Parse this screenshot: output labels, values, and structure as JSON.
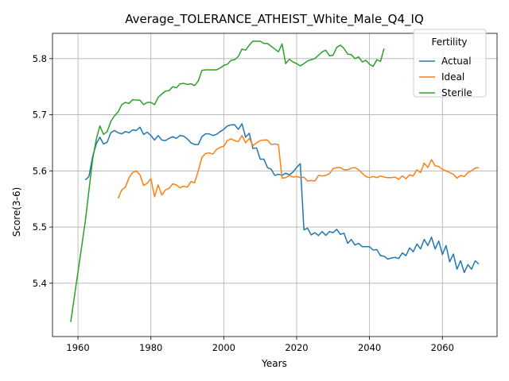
{
  "chart_data": {
    "type": "line",
    "title": "Average_TOLERANCE_ATHEIST_White_Male_Q4_IQ",
    "xlabel": "Years",
    "ylabel": "Score(3-6)",
    "xlim": [
      1953,
      2075
    ],
    "ylim": [
      5.305,
      5.845
    ],
    "xticks": [
      1960,
      1980,
      2000,
      2020,
      2040,
      2060
    ],
    "yticks": [
      5.4,
      5.5,
      5.6,
      5.7,
      5.8
    ],
    "grid": true,
    "legend": {
      "title": "Fertility",
      "placement": "top-right"
    },
    "series": [
      {
        "name": "Actual",
        "color": "#1f77b4",
        "points": [
          [
            1962,
            5.584
          ],
          [
            1963,
            5.59
          ],
          [
            1964,
            5.625
          ],
          [
            1965,
            5.648
          ],
          [
            1966,
            5.66
          ],
          [
            1967,
            5.648
          ],
          [
            1968,
            5.651
          ],
          [
            1969,
            5.668
          ],
          [
            1970,
            5.672
          ],
          [
            1971,
            5.668
          ],
          [
            1972,
            5.666
          ],
          [
            1973,
            5.67
          ],
          [
            1974,
            5.668
          ],
          [
            1975,
            5.673
          ],
          [
            1976,
            5.672
          ],
          [
            1977,
            5.678
          ],
          [
            1978,
            5.665
          ],
          [
            1979,
            5.669
          ],
          [
            1980,
            5.663
          ],
          [
            1981,
            5.655
          ],
          [
            1982,
            5.663
          ],
          [
            1983,
            5.655
          ],
          [
            1984,
            5.654
          ],
          [
            1985,
            5.658
          ],
          [
            1986,
            5.661
          ],
          [
            1987,
            5.658
          ],
          [
            1988,
            5.663
          ],
          [
            1989,
            5.662
          ],
          [
            1990,
            5.657
          ],
          [
            1991,
            5.65
          ],
          [
            1992,
            5.647
          ],
          [
            1993,
            5.647
          ],
          [
            1994,
            5.661
          ],
          [
            1995,
            5.666
          ],
          [
            1996,
            5.666
          ],
          [
            1997,
            5.663
          ],
          [
            1998,
            5.665
          ],
          [
            1999,
            5.67
          ],
          [
            2000,
            5.674
          ],
          [
            2001,
            5.68
          ],
          [
            2002,
            5.682
          ],
          [
            2003,
            5.682
          ],
          [
            2004,
            5.674
          ],
          [
            2005,
            5.684
          ],
          [
            2006,
            5.66
          ],
          [
            2007,
            5.667
          ],
          [
            2008,
            5.64
          ],
          [
            2009,
            5.641
          ],
          [
            2010,
            5.621
          ],
          [
            2011,
            5.621
          ],
          [
            2012,
            5.606
          ],
          [
            2013,
            5.603
          ],
          [
            2014,
            5.592
          ],
          [
            2015,
            5.594
          ],
          [
            2016,
            5.592
          ],
          [
            2017,
            5.596
          ],
          [
            2018,
            5.593
          ],
          [
            2019,
            5.598
          ],
          [
            2020,
            5.606
          ],
          [
            2021,
            5.613
          ],
          [
            2022,
            5.495
          ],
          [
            2023,
            5.498
          ],
          [
            2024,
            5.486
          ],
          [
            2025,
            5.49
          ],
          [
            2026,
            5.485
          ],
          [
            2027,
            5.492
          ],
          [
            2028,
            5.485
          ],
          [
            2029,
            5.492
          ],
          [
            2030,
            5.49
          ],
          [
            2031,
            5.496
          ],
          [
            2032,
            5.487
          ],
          [
            2033,
            5.489
          ],
          [
            2034,
            5.471
          ],
          [
            2035,
            5.478
          ],
          [
            2036,
            5.468
          ],
          [
            2037,
            5.471
          ],
          [
            2038,
            5.465
          ],
          [
            2039,
            5.465
          ],
          [
            2040,
            5.465
          ],
          [
            2041,
            5.459
          ],
          [
            2042,
            5.46
          ],
          [
            2043,
            5.449
          ],
          [
            2044,
            5.448
          ],
          [
            2045,
            5.443
          ],
          [
            2046,
            5.445
          ],
          [
            2047,
            5.446
          ],
          [
            2048,
            5.444
          ],
          [
            2049,
            5.454
          ],
          [
            2050,
            5.449
          ],
          [
            2051,
            5.463
          ],
          [
            2052,
            5.456
          ],
          [
            2053,
            5.47
          ],
          [
            2054,
            5.461
          ],
          [
            2055,
            5.478
          ],
          [
            2056,
            5.467
          ],
          [
            2057,
            5.482
          ],
          [
            2058,
            5.461
          ],
          [
            2059,
            5.475
          ],
          [
            2060,
            5.451
          ],
          [
            2061,
            5.467
          ],
          [
            2062,
            5.438
          ],
          [
            2063,
            5.452
          ],
          [
            2064,
            5.425
          ],
          [
            2065,
            5.44
          ],
          [
            2066,
            5.419
          ],
          [
            2067,
            5.433
          ],
          [
            2068,
            5.425
          ],
          [
            2069,
            5.44
          ],
          [
            2070,
            5.434
          ]
        ]
      },
      {
        "name": "Ideal",
        "color": "#ff7f0e",
        "points": [
          [
            1971,
            5.551
          ],
          [
            1972,
            5.566
          ],
          [
            1973,
            5.571
          ],
          [
            1974,
            5.588
          ],
          [
            1975,
            5.597
          ],
          [
            1976,
            5.6
          ],
          [
            1977,
            5.593
          ],
          [
            1978,
            5.574
          ],
          [
            1979,
            5.578
          ],
          [
            1980,
            5.586
          ],
          [
            1981,
            5.554
          ],
          [
            1982,
            5.575
          ],
          [
            1983,
            5.557
          ],
          [
            1984,
            5.566
          ],
          [
            1985,
            5.569
          ],
          [
            1986,
            5.577
          ],
          [
            1987,
            5.575
          ],
          [
            1988,
            5.57
          ],
          [
            1989,
            5.573
          ],
          [
            1990,
            5.571
          ],
          [
            1991,
            5.581
          ],
          [
            1992,
            5.579
          ],
          [
            1993,
            5.6
          ],
          [
            1994,
            5.624
          ],
          [
            1995,
            5.631
          ],
          [
            1996,
            5.632
          ],
          [
            1997,
            5.63
          ],
          [
            1998,
            5.638
          ],
          [
            1999,
            5.642
          ],
          [
            2000,
            5.644
          ],
          [
            2001,
            5.654
          ],
          [
            2002,
            5.657
          ],
          [
            2003,
            5.654
          ],
          [
            2004,
            5.652
          ],
          [
            2005,
            5.663
          ],
          [
            2006,
            5.65
          ],
          [
            2007,
            5.658
          ],
          [
            2008,
            5.645
          ],
          [
            2009,
            5.65
          ],
          [
            2010,
            5.654
          ],
          [
            2011,
            5.655
          ],
          [
            2012,
            5.655
          ],
          [
            2013,
            5.647
          ],
          [
            2014,
            5.648
          ],
          [
            2015,
            5.647
          ],
          [
            2016,
            5.587
          ],
          [
            2017,
            5.588
          ],
          [
            2018,
            5.592
          ],
          [
            2019,
            5.589
          ],
          [
            2020,
            5.59
          ],
          [
            2021,
            5.588
          ],
          [
            2022,
            5.589
          ],
          [
            2023,
            5.582
          ],
          [
            2024,
            5.583
          ],
          [
            2025,
            5.582
          ],
          [
            2026,
            5.592
          ],
          [
            2027,
            5.591
          ],
          [
            2028,
            5.592
          ],
          [
            2029,
            5.595
          ],
          [
            2030,
            5.604
          ],
          [
            2031,
            5.606
          ],
          [
            2032,
            5.606
          ],
          [
            2033,
            5.602
          ],
          [
            2034,
            5.602
          ],
          [
            2035,
            5.605
          ],
          [
            2036,
            5.606
          ],
          [
            2037,
            5.602
          ],
          [
            2038,
            5.596
          ],
          [
            2039,
            5.59
          ],
          [
            2040,
            5.588
          ],
          [
            2041,
            5.59
          ],
          [
            2042,
            5.588
          ],
          [
            2043,
            5.591
          ],
          [
            2044,
            5.589
          ],
          [
            2045,
            5.588
          ],
          [
            2046,
            5.588
          ],
          [
            2047,
            5.589
          ],
          [
            2048,
            5.585
          ],
          [
            2049,
            5.591
          ],
          [
            2050,
            5.586
          ],
          [
            2051,
            5.593
          ],
          [
            2052,
            5.591
          ],
          [
            2053,
            5.602
          ],
          [
            2054,
            5.597
          ],
          [
            2055,
            5.614
          ],
          [
            2056,
            5.606
          ],
          [
            2057,
            5.62
          ],
          [
            2058,
            5.609
          ],
          [
            2059,
            5.608
          ],
          [
            2060,
            5.603
          ],
          [
            2061,
            5.6
          ],
          [
            2062,
            5.597
          ],
          [
            2063,
            5.594
          ],
          [
            2064,
            5.587
          ],
          [
            2065,
            5.592
          ],
          [
            2066,
            5.59
          ],
          [
            2067,
            5.597
          ],
          [
            2068,
            5.6
          ],
          [
            2069,
            5.605
          ],
          [
            2070,
            5.606
          ]
        ]
      },
      {
        "name": "Sterile",
        "color": "#2ca02c",
        "points": [
          [
            1958,
            5.331
          ],
          [
            1960,
            5.42
          ],
          [
            1962,
            5.51
          ],
          [
            1963,
            5.565
          ],
          [
            1964,
            5.62
          ],
          [
            1965,
            5.656
          ],
          [
            1966,
            5.68
          ],
          [
            1967,
            5.665
          ],
          [
            1968,
            5.67
          ],
          [
            1969,
            5.688
          ],
          [
            1970,
            5.698
          ],
          [
            1971,
            5.705
          ],
          [
            1972,
            5.718
          ],
          [
            1973,
            5.722
          ],
          [
            1974,
            5.72
          ],
          [
            1975,
            5.727
          ],
          [
            1976,
            5.726
          ],
          [
            1977,
            5.726
          ],
          [
            1978,
            5.718
          ],
          [
            1979,
            5.722
          ],
          [
            1980,
            5.722
          ],
          [
            1981,
            5.718
          ],
          [
            1982,
            5.731
          ],
          [
            1983,
            5.737
          ],
          [
            1984,
            5.742
          ],
          [
            1985,
            5.743
          ],
          [
            1986,
            5.75
          ],
          [
            1987,
            5.748
          ],
          [
            1988,
            5.755
          ],
          [
            1989,
            5.756
          ],
          [
            1990,
            5.754
          ],
          [
            1991,
            5.755
          ],
          [
            1992,
            5.752
          ],
          [
            1993,
            5.76
          ],
          [
            1994,
            5.779
          ],
          [
            1995,
            5.78
          ],
          [
            1996,
            5.78
          ],
          [
            1997,
            5.78
          ],
          [
            1998,
            5.78
          ],
          [
            1999,
            5.783
          ],
          [
            2000,
            5.788
          ],
          [
            2001,
            5.79
          ],
          [
            2002,
            5.797
          ],
          [
            2003,
            5.798
          ],
          [
            2004,
            5.804
          ],
          [
            2005,
            5.817
          ],
          [
            2006,
            5.815
          ],
          [
            2007,
            5.824
          ],
          [
            2008,
            5.831
          ],
          [
            2009,
            5.831
          ],
          [
            2010,
            5.831
          ],
          [
            2011,
            5.827
          ],
          [
            2012,
            5.827
          ],
          [
            2013,
            5.822
          ],
          [
            2014,
            5.817
          ],
          [
            2015,
            5.812
          ],
          [
            2016,
            5.826
          ],
          [
            2017,
            5.791
          ],
          [
            2018,
            5.799
          ],
          [
            2019,
            5.794
          ],
          [
            2020,
            5.791
          ],
          [
            2021,
            5.787
          ],
          [
            2022,
            5.791
          ],
          [
            2023,
            5.796
          ],
          [
            2024,
            5.798
          ],
          [
            2025,
            5.8
          ],
          [
            2026,
            5.806
          ],
          [
            2027,
            5.812
          ],
          [
            2028,
            5.815
          ],
          [
            2029,
            5.805
          ],
          [
            2030,
            5.806
          ],
          [
            2031,
            5.82
          ],
          [
            2032,
            5.824
          ],
          [
            2033,
            5.818
          ],
          [
            2034,
            5.808
          ],
          [
            2035,
            5.807
          ],
          [
            2036,
            5.8
          ],
          [
            2037,
            5.803
          ],
          [
            2038,
            5.794
          ],
          [
            2039,
            5.797
          ],
          [
            2040,
            5.79
          ],
          [
            2041,
            5.786
          ],
          [
            2042,
            5.798
          ],
          [
            2043,
            5.795
          ],
          [
            2044,
            5.818
          ]
        ]
      }
    ]
  }
}
